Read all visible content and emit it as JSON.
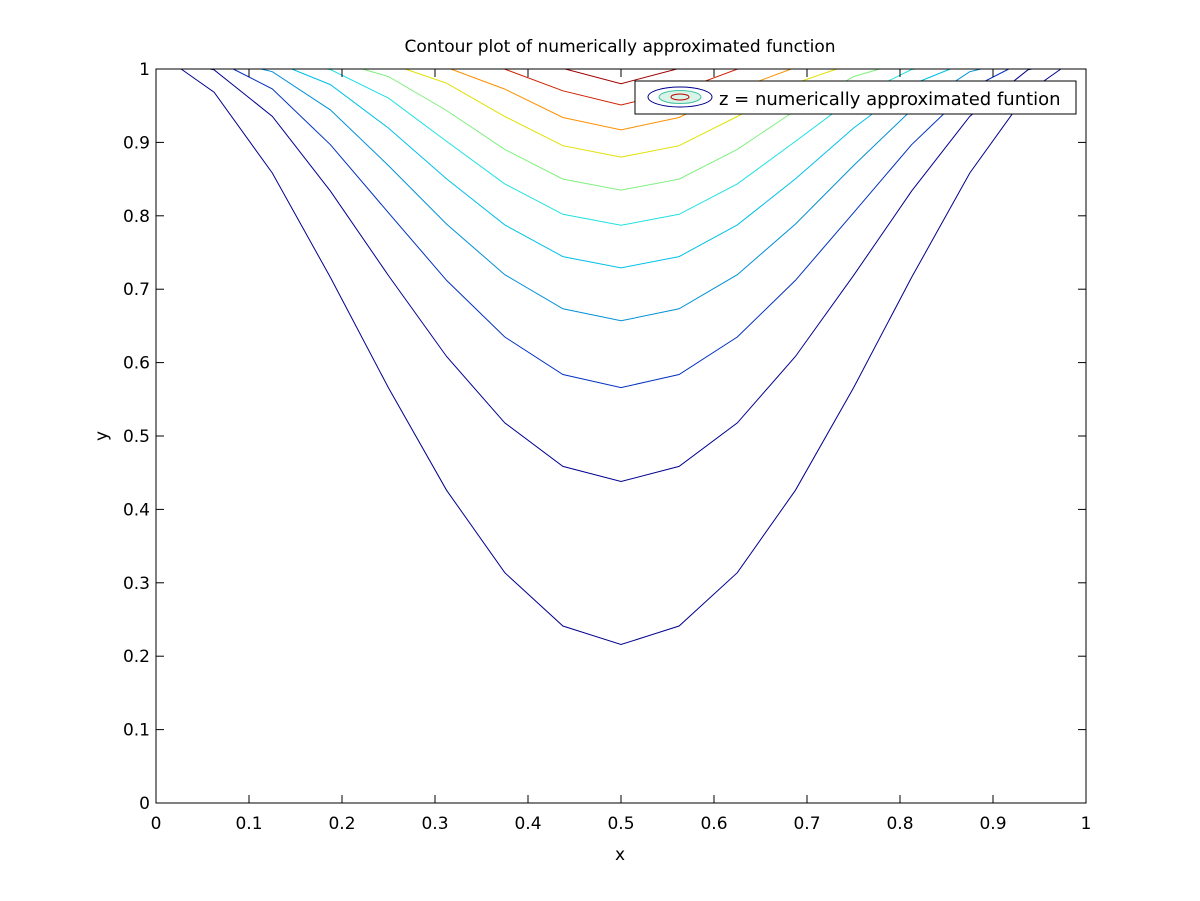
{
  "chart_data": {
    "type": "contour",
    "title": "Contour plot of numerically approximated function",
    "xlabel": "x",
    "ylabel": "y",
    "xlim": [
      0,
      1
    ],
    "ylim": [
      0,
      1
    ],
    "grid": false,
    "legend": {
      "placement": "top-right",
      "entries": [
        "z = numerically approximated funtion"
      ]
    },
    "xticks": [
      0,
      0.1,
      0.2,
      0.3,
      0.4,
      0.5,
      0.6,
      0.7,
      0.8,
      0.9,
      1
    ],
    "xtick_labels": [
      "0",
      "0.1",
      "0.2",
      "0.3",
      "0.4",
      "0.5",
      "0.6",
      "0.7",
      "0.8",
      "0.9",
      "1"
    ],
    "yticks": [
      0,
      0.1,
      0.2,
      0.3,
      0.4,
      0.5,
      0.6,
      0.7,
      0.8,
      0.9,
      1
    ],
    "ytick_labels": [
      "0",
      "0.1",
      "0.2",
      "0.3",
      "0.4",
      "0.5",
      "0.6",
      "0.7",
      "0.8",
      "0.9",
      "1"
    ],
    "grid_x": [
      0,
      0.0625,
      0.125,
      0.1875,
      0.25,
      0.3125,
      0.375,
      0.4375,
      0.5,
      0.5625,
      0.625,
      0.6875,
      0.75,
      0.8125,
      0.875,
      0.9375,
      1
    ],
    "contours": [
      {
        "color": "#00008f",
        "x_at_top": 0.027,
        "min_y": 0.216
      },
      {
        "color": "#00008f",
        "x_at_top": 0.058,
        "min_y": 0.438
      },
      {
        "color": "#0030c0",
        "x_at_top": 0.083,
        "min_y": 0.566
      },
      {
        "color": "#0090d8",
        "x_at_top": 0.113,
        "min_y": 0.657
      },
      {
        "color": "#00c0e8",
        "x_at_top": 0.146,
        "min_y": 0.729
      },
      {
        "color": "#20e0e0",
        "x_at_top": 0.183,
        "min_y": 0.787
      },
      {
        "color": "#80f080",
        "x_at_top": 0.222,
        "min_y": 0.835
      },
      {
        "color": "#e0e000",
        "x_at_top": 0.268,
        "min_y": 0.88
      },
      {
        "color": "#ff9000",
        "x_at_top": 0.317,
        "min_y": 0.917
      },
      {
        "color": "#d02000",
        "x_at_top": 0.373,
        "min_y": 0.951
      },
      {
        "color": "#a00000",
        "x_at_top": 0.44,
        "min_y": 0.98
      }
    ]
  }
}
